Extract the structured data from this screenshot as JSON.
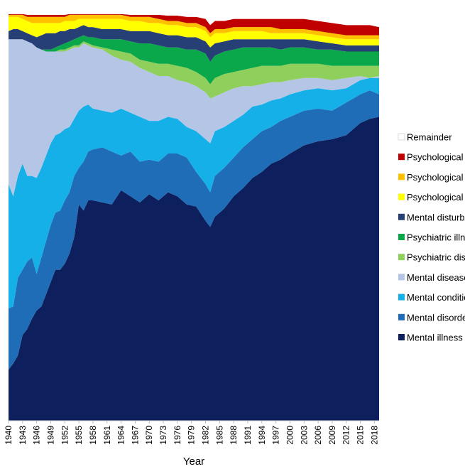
{
  "chart_data": {
    "type": "area",
    "stacked": true,
    "title": "",
    "xlabel": "Year",
    "ylabel": "",
    "xlim": [
      1940,
      2019
    ],
    "ylim": [
      0,
      100
    ],
    "grid": false,
    "legend_position": "right",
    "x_tick_labels": [
      "1940",
      "1943",
      "1946",
      "1949",
      "1952",
      "1955",
      "1958",
      "1961",
      "1964",
      "1967",
      "1970",
      "1973",
      "1976",
      "1979",
      "1982",
      "1985",
      "1988",
      "1991",
      "1994",
      "1997",
      "2000",
      "2003",
      "2006",
      "2009",
      "2012",
      "2015",
      "2018"
    ],
    "anchors": [
      1940,
      1941,
      1942,
      1943,
      1944,
      1945,
      1946,
      1947,
      1948,
      1949,
      1950,
      1951,
      1952,
      1953,
      1954,
      1955,
      1956,
      1957,
      1958,
      1960,
      1962,
      1964,
      1966,
      1968,
      1970,
      1972,
      1974,
      1976,
      1978,
      1980,
      1982,
      1983,
      1984,
      1986,
      1988,
      1990,
      1992,
      1994,
      1996,
      1998,
      2000,
      2003,
      2006,
      2009,
      2012,
      2015,
      2017,
      2019
    ],
    "series": [
      {
        "name": "Mental illness",
        "color": "#0d1f5c",
        "cumulative_top": [
          12.5,
          14,
          16,
          21,
          22.5,
          25,
          27,
          28,
          31,
          34,
          37,
          37,
          38.5,
          41,
          45,
          53,
          51.5,
          54,
          54,
          53.5,
          53,
          56.5,
          55,
          53.5,
          55.5,
          54,
          56,
          55,
          53,
          52.5,
          49,
          47.5,
          50,
          52,
          55,
          57,
          59.5,
          61,
          63,
          64,
          65.5,
          67.5,
          68.5,
          69,
          70,
          73,
          74,
          74.5
        ]
      },
      {
        "name": "Mental disorder",
        "color": "#1f6db6",
        "cumulative_top": [
          27.5,
          28,
          35,
          37,
          39,
          40,
          36,
          40,
          44,
          48,
          51,
          51.5,
          54,
          56,
          60,
          62,
          63.5,
          66,
          66.5,
          67,
          66,
          65,
          66,
          63.5,
          64,
          63.5,
          65.5,
          65.5,
          64.5,
          61,
          58,
          56,
          60,
          62,
          64.5,
          67,
          69,
          71,
          72,
          73.5,
          74.5,
          76,
          76.5,
          76,
          78,
          80,
          81,
          80
        ]
      },
      {
        "name": "Mental condition",
        "color": "#15b0e8",
        "cumulative_top": [
          58,
          55,
          60,
          63,
          60,
          60,
          59.5,
          62,
          65,
          68,
          70,
          70.5,
          71.5,
          72,
          74,
          76,
          77,
          77.5,
          76.5,
          76,
          75.5,
          76.5,
          75.5,
          74.5,
          73.5,
          73.5,
          74.5,
          74,
          72,
          71,
          69,
          68,
          71,
          72,
          73.5,
          75,
          77,
          77.5,
          78.5,
          79,
          80,
          81,
          81.5,
          81,
          81.5,
          83.5,
          84,
          84
        ]
      },
      {
        "name": "Mental disease",
        "color": "#b5c5e6",
        "cumulative_top": [
          93.5,
          93.5,
          93.5,
          93.5,
          93,
          92.5,
          91.5,
          91,
          90.5,
          90.5,
          90.5,
          90.5,
          90.5,
          91,
          91.5,
          91.5,
          92.5,
          92,
          91.5,
          91,
          89.5,
          88.5,
          88,
          86.5,
          85.5,
          84.5,
          84.5,
          83.5,
          83,
          82,
          80.5,
          79,
          79.5,
          80.5,
          81.5,
          82,
          82,
          82.5,
          83,
          83,
          83.5,
          84,
          84,
          83.5,
          84,
          84.5,
          84,
          84.5
        ]
      },
      {
        "name": "Psychiatric disorder",
        "color": "#8fcf5c",
        "cumulative_top": [
          93.5,
          93.5,
          93.5,
          93.5,
          93,
          92.5,
          91.5,
          91,
          90.5,
          90.5,
          90.5,
          91,
          91,
          91.5,
          92,
          92,
          93,
          92.5,
          92,
          91.5,
          91,
          90.5,
          90,
          88.5,
          88,
          87.5,
          87.5,
          87,
          86.5,
          85.5,
          84,
          82.5,
          84,
          85,
          85.5,
          86,
          86.5,
          87,
          87,
          87,
          87.5,
          87.5,
          87.5,
          87,
          87,
          87,
          87,
          87
        ]
      },
      {
        "name": "Psychiatric illness",
        "color": "#0aa84a",
        "cumulative_top": [
          93.5,
          93.5,
          93.5,
          93.5,
          93,
          92.5,
          91.5,
          91,
          91,
          91,
          91.5,
          92,
          92.5,
          93,
          93.5,
          94,
          94.5,
          94,
          94,
          93.5,
          93.5,
          93.5,
          93,
          92.5,
          92.5,
          92,
          91.5,
          91.5,
          91,
          91,
          90,
          88,
          89.5,
          90.5,
          91,
          91.5,
          91.5,
          91.5,
          91.5,
          91,
          91.5,
          91.5,
          91,
          91,
          90.5,
          90.5,
          90.5,
          90.5
        ]
      },
      {
        "name": "Mental disturbance",
        "color": "#263f74",
        "cumulative_top": [
          95.5,
          96,
          96,
          95.5,
          95,
          94.5,
          94,
          94.5,
          95,
          95,
          95,
          95.5,
          95.5,
          96,
          96,
          96.5,
          97,
          96.5,
          96.5,
          96,
          96,
          96,
          95.5,
          95.5,
          95.5,
          95,
          94.5,
          94.5,
          94,
          94,
          93,
          91.5,
          92.5,
          93,
          93.5,
          93.5,
          93.5,
          93.5,
          93.5,
          93.5,
          93.5,
          93.5,
          93,
          92.5,
          92,
          92,
          92,
          92
        ]
      },
      {
        "name": "Psychological distress",
        "color": "#ffff00",
        "cumulative_top": [
          99,
          99,
          99,
          98.5,
          98,
          97.5,
          97.5,
          97.5,
          97.5,
          97.5,
          97.5,
          97.5,
          98,
          98,
          98,
          98.5,
          98.5,
          98.5,
          98.5,
          98.5,
          98.5,
          98.5,
          98,
          98,
          97.5,
          97.5,
          97,
          97,
          96.5,
          96.5,
          95.5,
          94,
          95,
          95,
          95.5,
          95.5,
          95.5,
          95.5,
          95,
          95,
          95,
          95,
          94.5,
          94,
          93.5,
          93.5,
          93.5,
          93.5
        ]
      },
      {
        "name": "Psychological disorder",
        "color": "#ffc000",
        "cumulative_top": [
          99.5,
          99.5,
          99.5,
          99.5,
          99,
          99,
          99,
          99,
          99,
          99,
          99,
          99,
          99,
          99.5,
          99.5,
          99.5,
          99.5,
          99.5,
          99.5,
          99.5,
          99.5,
          99.5,
          99,
          99,
          99,
          98.5,
          98,
          98,
          97.5,
          97.5,
          96.5,
          95,
          96,
          96,
          96.5,
          96.5,
          96.5,
          96.5,
          96.5,
          96,
          96,
          96,
          95.5,
          95,
          94.5,
          94.5,
          94.5,
          94.5
        ]
      },
      {
        "name": "Psychological problem",
        "color": "#c00000",
        "cumulative_top": [
          99.7,
          99.7,
          99.7,
          99.7,
          99.5,
          99.5,
          99.5,
          99.5,
          99.5,
          99.5,
          99.5,
          99.5,
          99.5,
          99.7,
          99.7,
          99.7,
          99.7,
          99.7,
          99.7,
          99.7,
          99.7,
          99.7,
          99.5,
          99.5,
          99.5,
          99.5,
          99.3,
          99.3,
          99,
          99,
          98.5,
          97,
          98,
          98,
          98.5,
          98.5,
          98.5,
          98.5,
          98.5,
          98.5,
          98.5,
          98.5,
          98,
          97.5,
          97,
          97,
          97,
          96.5
        ]
      },
      {
        "name": "Remainder",
        "color": "#ffffff",
        "cumulative_top": [
          100,
          100,
          100,
          100,
          100,
          100,
          100,
          100,
          100,
          100,
          100,
          100,
          100,
          100,
          100,
          100,
          100,
          100,
          100,
          100,
          100,
          100,
          100,
          100,
          100,
          100,
          100,
          100,
          100,
          100,
          100,
          100,
          100,
          100,
          100,
          100,
          100,
          100,
          100,
          100,
          100,
          100,
          100,
          100,
          100,
          100,
          100,
          100
        ]
      }
    ],
    "legend_labels": [
      "Remainder",
      "Psychological problem",
      "Psychological disorder",
      "Psychological distress",
      "Mental disturbance",
      "Psychiatric illness",
      "Psychiatric disorder",
      "Mental disease",
      "Mental condition",
      "Mental disorder",
      "Mental illness"
    ]
  }
}
